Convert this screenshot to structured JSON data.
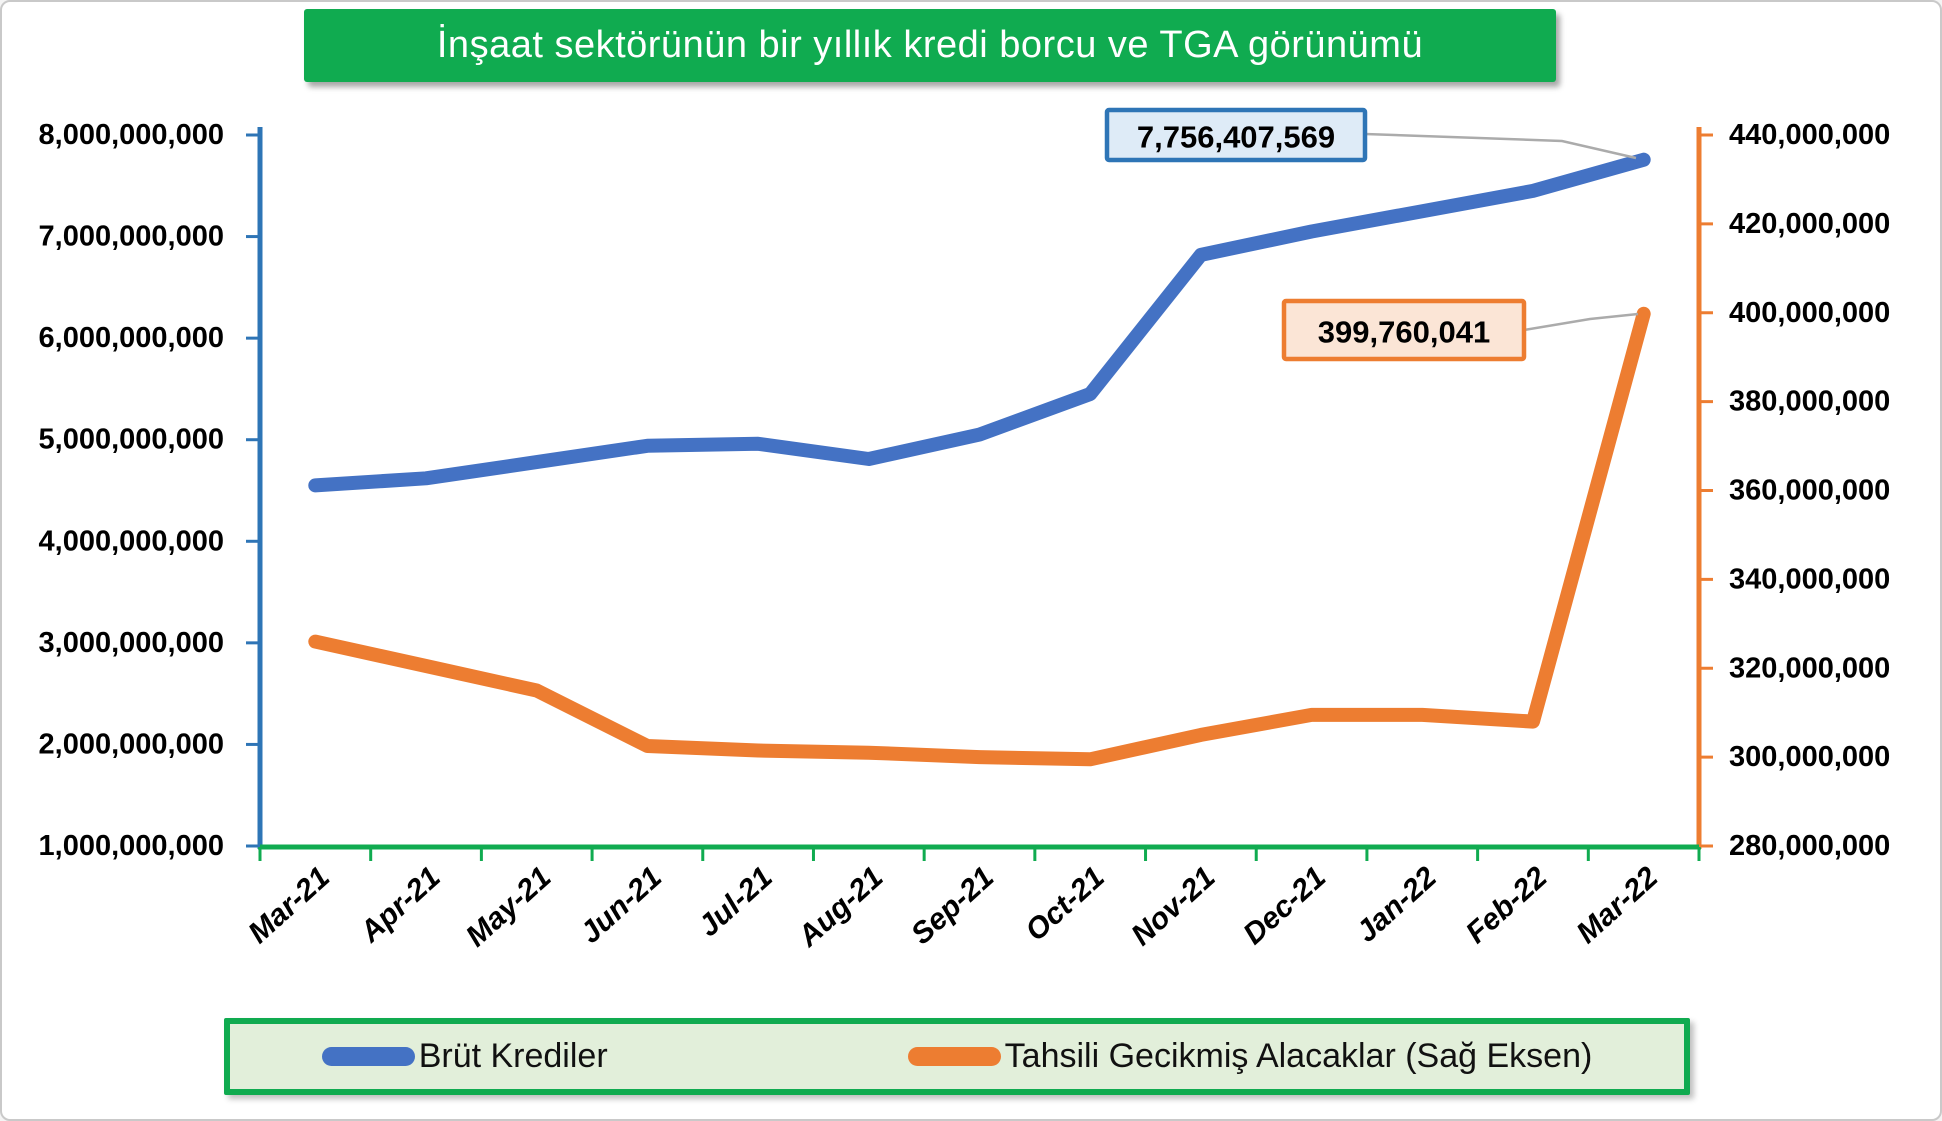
{
  "chart_data": {
    "type": "line",
    "title": "İnşaat sektörünün bir yıllık kredi borcu ve TGA görünümü",
    "title_background": "#10AB50",
    "categories": [
      "Mar-21",
      "Apr-21",
      "May-21",
      "Jun-21",
      "Jul-21",
      "Aug-21",
      "Sep-21",
      "Oct-21",
      "Nov-21",
      "Dec-21",
      "Jan-22",
      "Feb-22",
      "Mar-22"
    ],
    "series": [
      {
        "name": "Brüt Krediler",
        "axis": "left",
        "color": "#4472C4",
        "values": [
          4550000000,
          4620000000,
          4780000000,
          4940000000,
          4960000000,
          4810000000,
          5050000000,
          5450000000,
          6820000000,
          7050000000,
          7250000000,
          7450000000,
          7756407569
        ]
      },
      {
        "name": "Tahsili Gecikmiş Alacaklar (Sağ Eksen)",
        "axis": "right",
        "color": "#ED7D31",
        "values": [
          326000000,
          320500000,
          315000000,
          302500000,
          301500000,
          301000000,
          300000000,
          299500000,
          305000000,
          309500000,
          309500000,
          308000000,
          399760041
        ]
      }
    ],
    "left_axis": {
      "min": 1000000000,
      "max": 8000000000,
      "step": 1000000000,
      "labels": [
        "8,000,000,000",
        "7,000,000,000",
        "6,000,000,000",
        "5,000,000,000",
        "4,000,000,000",
        "3,000,000,000",
        "2,000,000,000",
        "1,000,000,000"
      ],
      "color": "#2E75B6"
    },
    "right_axis": {
      "min": 280000000,
      "max": 440000000,
      "step": 20000000,
      "labels": [
        "440,000,000",
        "420,000,000",
        "400,000,000",
        "380,000,000",
        "360,000,000",
        "340,000,000",
        "320,000,000",
        "300,000,000",
        "280,000,000"
      ],
      "color": "#ED7D31"
    },
    "x_axis": {
      "color": "#10AB50"
    },
    "grid": false,
    "legend": {
      "position": "bottom",
      "background": "#E2EFDA",
      "border": "#10AB50"
    },
    "annotations": [
      {
        "text": "7,756,407,569",
        "series": "Brüt Krediler",
        "fill": "#DEEBF7",
        "border": "#2E75B6"
      },
      {
        "text": "399,760,041",
        "series": "Tahsili Gecikmiş Alacaklar (Sağ Eksen)",
        "fill": "#FBE5D6",
        "border": "#ED7D31"
      }
    ],
    "leader_line_color": "#ABABAB"
  }
}
